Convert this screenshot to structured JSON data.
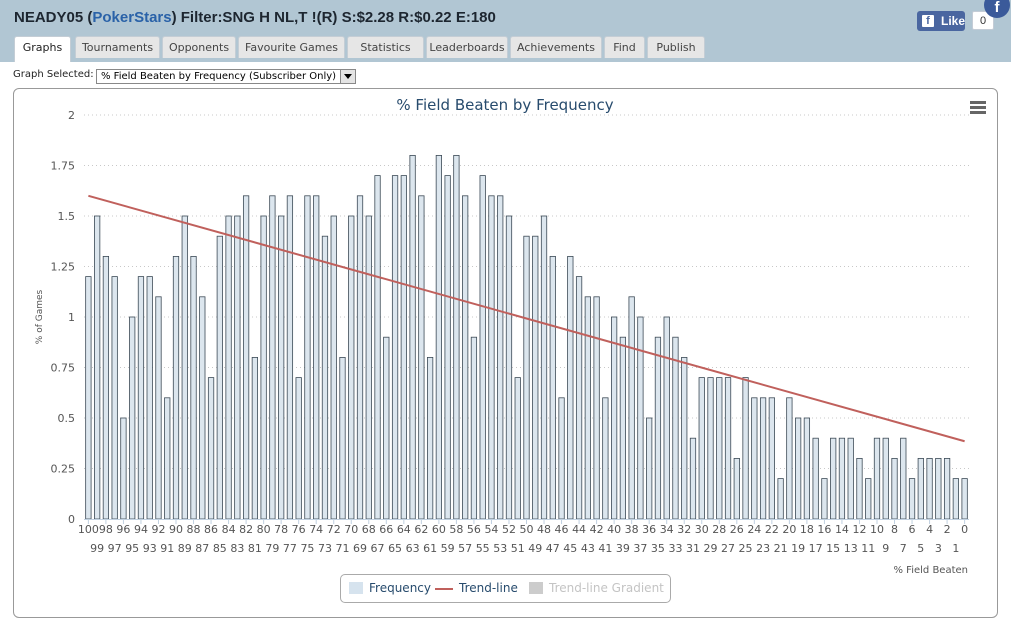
{
  "header": {
    "player": "NEADY05",
    "site": "PokerStars",
    "filter_text": "Filter:SNG H NL,T !(R) S:$2.28 R:$0.22 E:180"
  },
  "facebook": {
    "like_label": "Like",
    "count": "0",
    "corner_glyph": "f"
  },
  "tabs": [
    {
      "label": "Graphs",
      "active": true
    },
    {
      "label": "Tournaments",
      "active": false
    },
    {
      "label": "Opponents",
      "active": false
    },
    {
      "label": "Favourite Games",
      "active": false
    },
    {
      "label": "Statistics",
      "active": false
    },
    {
      "label": "Leaderboards",
      "active": false
    },
    {
      "label": "Achievements",
      "active": false
    },
    {
      "label": "Find",
      "active": false
    },
    {
      "label": "Publish",
      "active": false
    }
  ],
  "graph_select": {
    "label": "Graph Selected:",
    "value": "% Field Beaten by Frequency (Subscriber Only)"
  },
  "colors": {
    "bar_fill": "#dce6ee",
    "bar_stroke": "#3c4a56",
    "trend": "#c0605c",
    "title": "#274b6d",
    "axis_text": "#555555",
    "topbar": "#b1c6d3"
  },
  "icons": {
    "chart_menu": "hamburger-menu-icon"
  },
  "chart_data": {
    "type": "bar",
    "title": "% Field Beaten by Frequency",
    "xlabel": "% Field Beaten",
    "ylabel": "% of Games",
    "ylim": [
      0,
      2
    ],
    "yticks": [
      "0",
      "0.25",
      "0.5",
      "0.75",
      "1",
      "1.25",
      "1.5",
      "1.75",
      "2"
    ],
    "grid": "horizontal dotted",
    "legend_position": "bottom-center",
    "categories": [
      "100",
      "99",
      "98",
      "97",
      "96",
      "95",
      "94",
      "93",
      "92",
      "91",
      "90",
      "89",
      "88",
      "87",
      "86",
      "85",
      "84",
      "83",
      "82",
      "81",
      "80",
      "79",
      "78",
      "77",
      "76",
      "75",
      "74",
      "73",
      "72",
      "71",
      "70",
      "69",
      "68",
      "67",
      "66",
      "65",
      "64",
      "63",
      "62",
      "61",
      "60",
      "59",
      "58",
      "57",
      "56",
      "55",
      "54",
      "53",
      "52",
      "51",
      "50",
      "49",
      "48",
      "47",
      "46",
      "45",
      "44",
      "43",
      "42",
      "41",
      "40",
      "39",
      "38",
      "37",
      "36",
      "35",
      "34",
      "33",
      "32",
      "31",
      "30",
      "29",
      "28",
      "27",
      "26",
      "25",
      "24",
      "23",
      "22",
      "21",
      "20",
      "19",
      "18",
      "17",
      "16",
      "15",
      "14",
      "13",
      "12",
      "11",
      "10",
      "9",
      "8",
      "7",
      "6",
      "5",
      "4",
      "3",
      "2",
      "1",
      "0"
    ],
    "series": [
      {
        "name": "Frequency",
        "values": [
          1.2,
          1.5,
          1.3,
          1.2,
          0.5,
          1.0,
          1.2,
          1.2,
          1.1,
          0.6,
          1.3,
          1.5,
          1.3,
          1.1,
          0.7,
          1.4,
          1.5,
          1.5,
          1.6,
          0.8,
          1.5,
          1.6,
          1.5,
          1.6,
          0.7,
          1.6,
          1.6,
          1.4,
          1.5,
          0.8,
          1.5,
          1.6,
          1.5,
          1.7,
          0.9,
          1.7,
          1.7,
          1.8,
          1.6,
          0.8,
          1.8,
          1.7,
          1.8,
          1.6,
          0.9,
          1.7,
          1.6,
          1.6,
          1.5,
          0.7,
          1.4,
          1.4,
          1.5,
          1.3,
          0.6,
          1.3,
          1.2,
          1.1,
          1.1,
          0.6,
          1.0,
          0.9,
          1.1,
          1.0,
          0.5,
          0.9,
          1.0,
          0.9,
          0.8,
          0.4,
          0.7,
          0.7,
          0.7,
          0.7,
          0.3,
          0.7,
          0.6,
          0.6,
          0.6,
          0.2,
          0.6,
          0.5,
          0.5,
          0.4,
          0.2,
          0.4,
          0.4,
          0.4,
          0.3,
          0.2,
          0.4,
          0.4,
          0.3,
          0.4,
          0.2,
          0.3,
          0.3,
          0.3,
          0.3,
          0.2,
          0.2
        ]
      },
      {
        "name": "Trend-line",
        "values_at_ends": [
          1.6,
          0.385
        ]
      },
      {
        "name": "Trend-line Gradient",
        "hidden": true
      }
    ]
  }
}
